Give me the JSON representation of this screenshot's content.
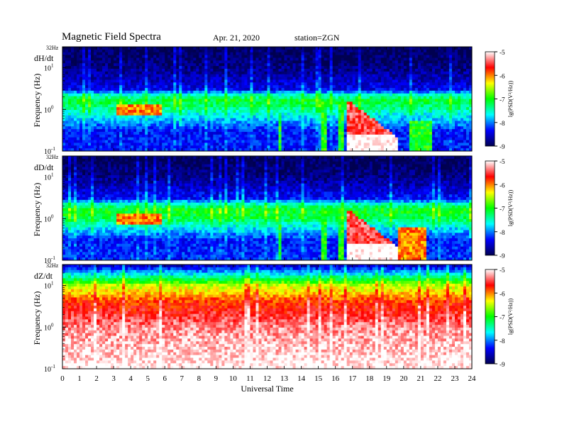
{
  "chart_data": {
    "type": "heatmap",
    "title": "Magnetic Field Spectra",
    "date": "Apr. 21, 2020",
    "station": "station=ZGN",
    "xlabel": "Universal Time",
    "xlim": [
      0,
      24
    ],
    "x_ticks": [
      "0",
      "1",
      "2",
      "3",
      "4",
      "5",
      "6",
      "7",
      "8",
      "9",
      "10",
      "11",
      "12",
      "13",
      "14",
      "15",
      "16",
      "17",
      "18",
      "19",
      "20",
      "21",
      "22",
      "23",
      "24"
    ],
    "ylabel": "Frequency  (Hz)",
    "yscale": "log",
    "ylim": [
      0.1,
      32
    ],
    "y_ticks": [
      {
        "value": 0.1,
        "base": "10",
        "exp": "-1"
      },
      {
        "value": 1,
        "base": "10",
        "exp": "0"
      },
      {
        "value": 10,
        "base": "10",
        "exp": "1"
      }
    ],
    "y_top_label": "32Hz",
    "colorbar": {
      "label": "lg(PSD(V²/Hz))",
      "range": [
        -9,
        -5
      ],
      "ticks": [
        "-5",
        "-6",
        "-7",
        "-8",
        "-9"
      ],
      "colors": [
        "#ffffff",
        "#ff0000",
        "#ffff00",
        "#00ff00",
        "#00ffff",
        "#0000ff",
        "#000050"
      ]
    },
    "panels": [
      {
        "component": "dH/dt",
        "background_psd": [
          [
            0.1,
            -8.3
          ],
          [
            0.3,
            -8.3
          ],
          [
            0.6,
            -7.8
          ],
          [
            1,
            -7.4
          ],
          [
            1.6,
            -7.1
          ],
          [
            2.2,
            -7.5
          ],
          [
            3,
            -8.4
          ],
          [
            10,
            -8.8
          ],
          [
            32,
            -9
          ]
        ],
        "events": [
          {
            "t": [
              3.2,
              5.8
            ],
            "f": [
              0.7,
              1.4
            ],
            "psd": -6
          },
          {
            "t": [
              16.6,
              19.6
            ],
            "f": [
              0.1,
              1.8
            ],
            "psd": -5.5
          },
          {
            "t": [
              15.1,
              15.5
            ],
            "f": [
              0.1,
              1.5
            ],
            "psd": -7
          },
          {
            "t": [
              16.1,
              16.5
            ],
            "f": [
              0.1,
              1.5
            ],
            "psd": -7
          },
          {
            "t": [
              20.3,
              21.6
            ],
            "f": [
              0.1,
              0.5
            ],
            "psd": -7
          },
          {
            "t": [
              12.6,
              12.9
            ],
            "f": [
              0.1,
              0.9
            ],
            "psd": -7
          }
        ]
      },
      {
        "component": "dD/dt",
        "background_psd": [
          [
            0.1,
            -8.2
          ],
          [
            0.3,
            -8.3
          ],
          [
            0.6,
            -7.7
          ],
          [
            1,
            -7.2
          ],
          [
            1.6,
            -7
          ],
          [
            2.2,
            -7.5
          ],
          [
            3,
            -8.3
          ],
          [
            10,
            -8.8
          ],
          [
            32,
            -9
          ]
        ],
        "events": [
          {
            "t": [
              3.2,
              5.8
            ],
            "f": [
              0.7,
              1.4
            ],
            "psd": -6
          },
          {
            "t": [
              16.6,
              19.6
            ],
            "f": [
              0.1,
              1.8
            ],
            "psd": -5.5
          },
          {
            "t": [
              15.1,
              15.5
            ],
            "f": [
              0.1,
              1.5
            ],
            "psd": -7
          },
          {
            "t": [
              16.1,
              16.5
            ],
            "f": [
              0.1,
              1.5
            ],
            "psd": -7
          },
          {
            "t": [
              19.7,
              21.4
            ],
            "f": [
              0.1,
              0.6
            ],
            "psd": -6
          },
          {
            "t": [
              12.6,
              12.9
            ],
            "f": [
              0.1,
              0.9
            ],
            "psd": -7
          }
        ]
      },
      {
        "component": "dZ/dt",
        "background_psd": [
          [
            0.1,
            -5
          ],
          [
            1,
            -5.3
          ],
          [
            4,
            -5.8
          ],
          [
            10,
            -6.5
          ],
          [
            20,
            -7.8
          ],
          [
            32,
            -8.6
          ]
        ],
        "events": []
      }
    ]
  }
}
